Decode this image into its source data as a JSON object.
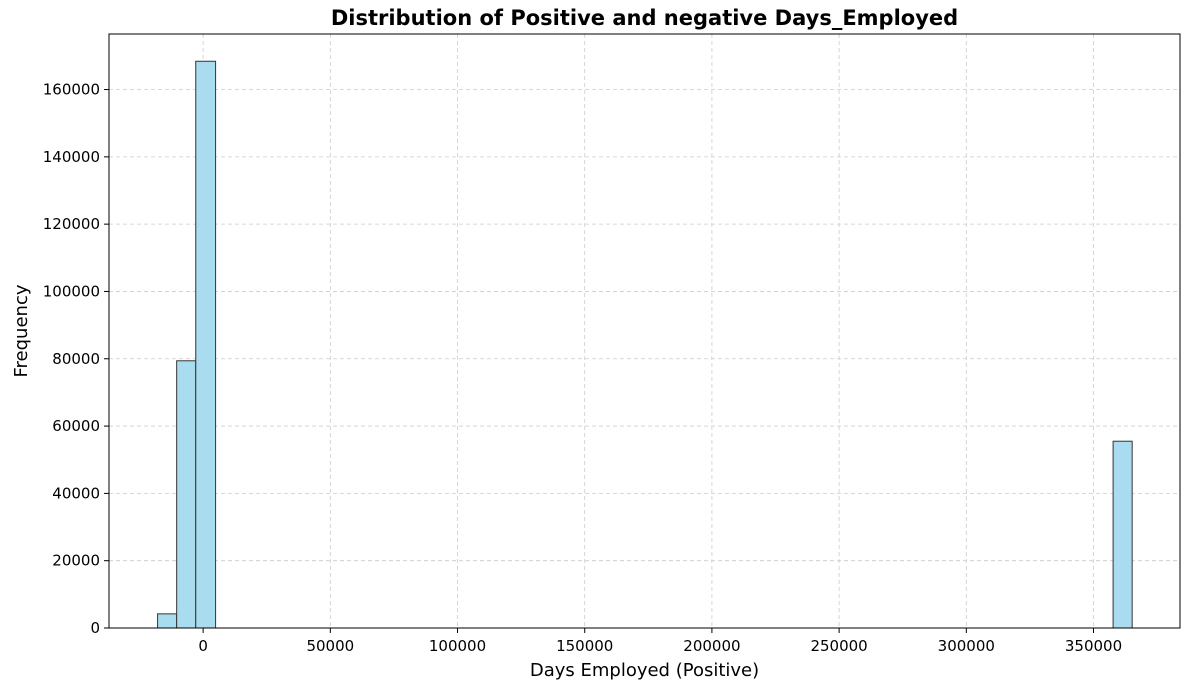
{
  "chart_data": {
    "type": "bar",
    "title": "Distribution of Positive and negative Days_Employed",
    "xlabel": "Days Employed (Positive)",
    "ylabel": "Frequency",
    "xlim": [
      -37000,
      384000
    ],
    "ylim": [
      0,
      176500
    ],
    "xticks": [
      0,
      50000,
      100000,
      150000,
      200000,
      250000,
      300000,
      350000
    ],
    "yticks": [
      0,
      20000,
      40000,
      60000,
      80000,
      100000,
      120000,
      140000,
      160000
    ],
    "grid": true,
    "bins": [
      {
        "x0": -17900,
        "x1": -10400,
        "count": 4200
      },
      {
        "x0": -10400,
        "x1": -2900,
        "count": 79400
      },
      {
        "x0": -2900,
        "x1": 4900,
        "count": 168400
      },
      {
        "x0": 357700,
        "x1": 365200,
        "count": 55500
      }
    ],
    "bar_color": "#a9dcee",
    "edge_color": "#333333"
  }
}
